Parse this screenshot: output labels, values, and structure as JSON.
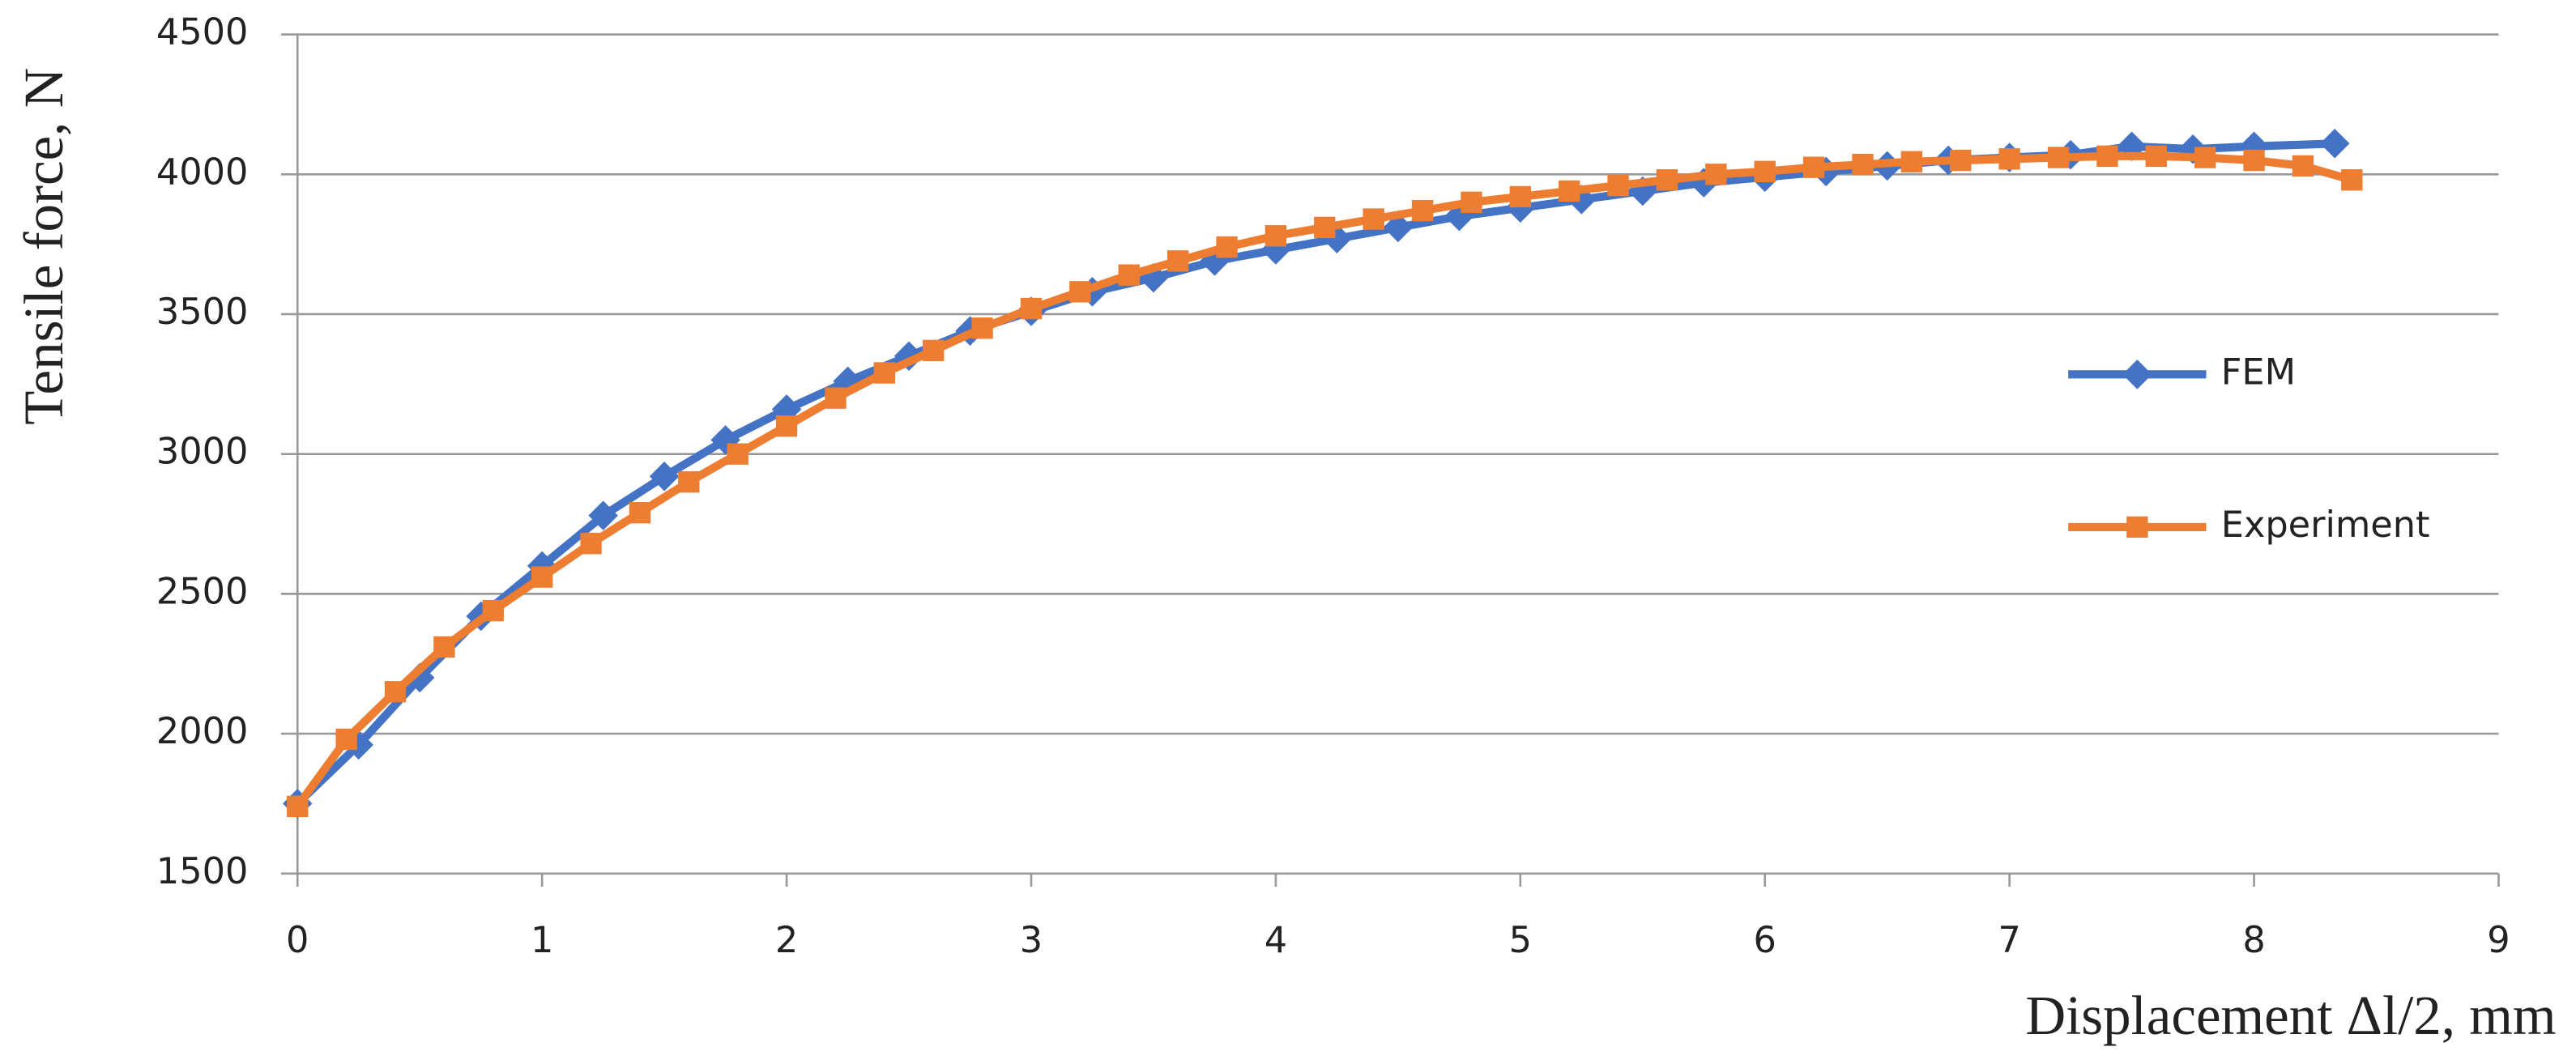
{
  "chart_data": {
    "type": "line",
    "x_label": "Displacement Δl/2, mm",
    "y_label": "Tensile force, N",
    "xlim": [
      0,
      9
    ],
    "xticks": [
      0,
      1,
      2,
      3,
      4,
      5,
      6,
      7,
      8,
      9
    ],
    "ylim": [
      1500,
      4500
    ],
    "yticks": [
      1500,
      2000,
      2500,
      3000,
      3500,
      4000,
      4500
    ],
    "grid": true,
    "legend": "right",
    "series": [
      {
        "name": "FEM",
        "color": "#4472c4",
        "marker": "diamond",
        "x": [
          0,
          0.25,
          0.5,
          0.75,
          1,
          1.25,
          1.5,
          1.75,
          2,
          2.25,
          2.5,
          2.75,
          3,
          3.25,
          3.5,
          3.75,
          4,
          4.25,
          4.5,
          4.75,
          5,
          5.25,
          5.5,
          5.75,
          6,
          6.25,
          6.5,
          6.75,
          7,
          7.25,
          7.5,
          7.75,
          8,
          8.33
        ],
        "values": [
          1750,
          1960,
          2200,
          2420,
          2600,
          2780,
          2920,
          3050,
          3160,
          3260,
          3350,
          3440,
          3510,
          3580,
          3630,
          3690,
          3730,
          3770,
          3810,
          3850,
          3880,
          3910,
          3940,
          3970,
          3990,
          4010,
          4030,
          4050,
          4060,
          4070,
          4100,
          4090,
          4100,
          4110
        ]
      },
      {
        "name": "Experiment",
        "color": "#ed7d31",
        "marker": "square",
        "x": [
          0,
          0.2,
          0.4,
          0.6,
          0.8,
          1.0,
          1.2,
          1.4,
          1.6,
          1.8,
          2.0,
          2.2,
          2.4,
          2.6,
          2.8,
          3.0,
          3.2,
          3.4,
          3.6,
          3.8,
          4.0,
          4.2,
          4.4,
          4.6,
          4.8,
          5.0,
          5.2,
          5.4,
          5.6,
          5.8,
          6.0,
          6.2,
          6.4,
          6.6,
          6.8,
          7.0,
          7.2,
          7.4,
          7.6,
          7.8,
          8.0,
          8.2,
          8.4
        ],
        "values": [
          1740,
          1980,
          2150,
          2310,
          2440,
          2560,
          2680,
          2790,
          2900,
          3000,
          3100,
          3200,
          3290,
          3370,
          3450,
          3520,
          3580,
          3640,
          3690,
          3740,
          3780,
          3810,
          3840,
          3870,
          3900,
          3920,
          3940,
          3960,
          3980,
          4000,
          4010,
          4025,
          4035,
          4045,
          4050,
          4055,
          4060,
          4065,
          4065,
          4060,
          4050,
          4030,
          3980
        ]
      }
    ]
  }
}
